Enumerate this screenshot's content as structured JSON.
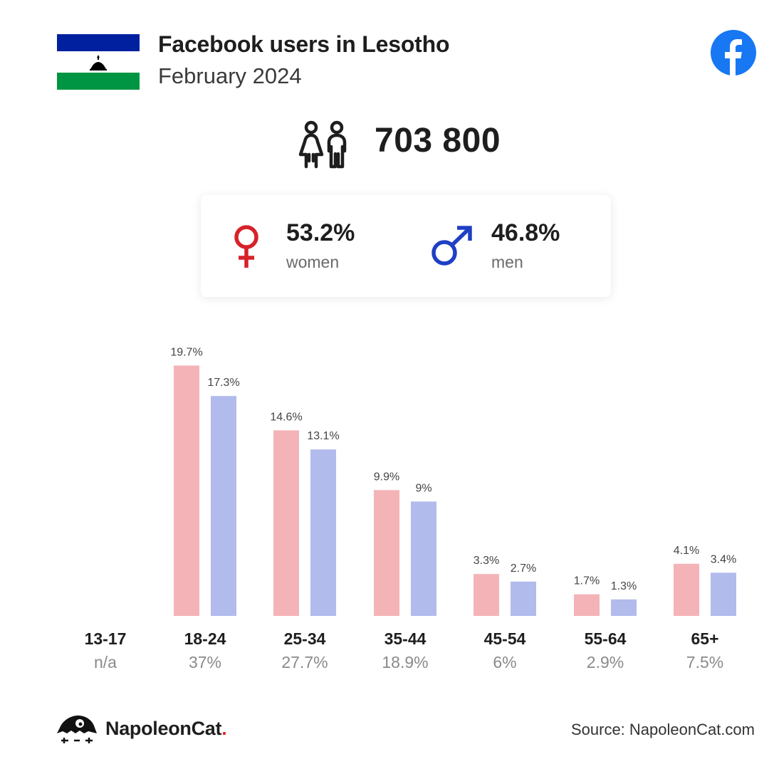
{
  "header": {
    "title": "Facebook users in Lesotho",
    "subtitle": "February 2024"
  },
  "total_users": "703 800",
  "gender": {
    "women": {
      "pct": "53.2%",
      "label": "women"
    },
    "men": {
      "pct": "46.8%",
      "label": "men"
    }
  },
  "colors": {
    "women_bar": "#f4b4b7",
    "men_bar": "#b1bbec",
    "female_symbol": "#d7222a",
    "male_symbol": "#1f3fc4",
    "facebook": "#1877f2",
    "flag_blue": "#00209f",
    "flag_green": "#009543"
  },
  "chart_data": {
    "type": "bar",
    "categories": [
      "13-17",
      "18-24",
      "25-34",
      "35-44",
      "45-54",
      "55-64",
      "65+"
    ],
    "group_totals": [
      "n/a",
      "37%",
      "27.7%",
      "18.9%",
      "6%",
      "2.9%",
      "7.5%"
    ],
    "series": [
      {
        "name": "women",
        "values": [
          null,
          19.7,
          14.6,
          9.9,
          3.3,
          1.7,
          4.1
        ],
        "labels": [
          "",
          "19.7%",
          "14.6%",
          "9.9%",
          "3.3%",
          "1.7%",
          "4.1%"
        ]
      },
      {
        "name": "men",
        "values": [
          null,
          17.3,
          13.1,
          9,
          2.7,
          1.3,
          3.4
        ],
        "labels": [
          "",
          "17.3%",
          "13.1%",
          "9%",
          "2.7%",
          "1.3%",
          "3.4%"
        ]
      }
    ],
    "ylim": [
      0,
      20
    ]
  },
  "footer": {
    "brand": "NapoleonCat",
    "brand_dot": ".",
    "source": "Source: NapoleonCat.com"
  }
}
